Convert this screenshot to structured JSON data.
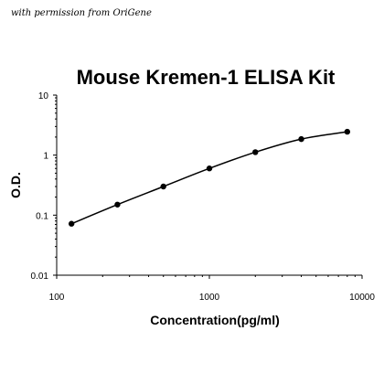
{
  "watermark": "with permission from OriGene",
  "chart_data": {
    "type": "line",
    "title": "Mouse Kremen-1 ELISA Kit",
    "xlabel": "Concentration(pg/ml)",
    "ylabel": "O.D.",
    "xscale": "log",
    "yscale": "log",
    "xlim": [
      100,
      10000
    ],
    "ylim": [
      0.01,
      10
    ],
    "xticks": [
      100,
      1000,
      10000
    ],
    "xtick_labels": [
      "100",
      "1000",
      "10000"
    ],
    "yticks": [
      0.01,
      0.1,
      1,
      10
    ],
    "ytick_labels": [
      "0.01",
      "0.1",
      "1",
      "10"
    ],
    "grid": false,
    "legend": "none",
    "series": [
      {
        "x": [
          125,
          250,
          500,
          1000,
          2000,
          4000,
          8000
        ],
        "y": [
          0.072,
          0.15,
          0.3,
          0.6,
          1.12,
          1.85,
          2.45
        ],
        "marker": "circle",
        "color": "#000000"
      }
    ]
  }
}
